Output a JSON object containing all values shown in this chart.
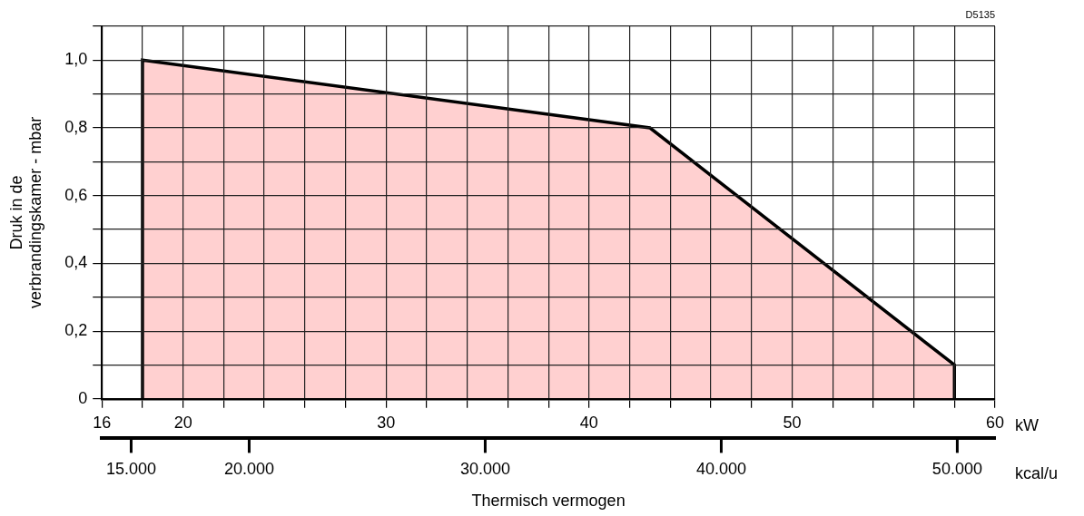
{
  "chart_data": {
    "type": "area",
    "xlabel": "kW",
    "x2label": "kcal/u",
    "ylabel": "Druk in de verbrandingskamer - mbar",
    "annotations": [
      "D5135",
      "Thermisch vermogen"
    ],
    "xlim": [
      16,
      60
    ],
    "xticks": [
      16,
      {
        "value": 18,
        "label": null
      },
      20,
      {
        "value": 22,
        "label": null
      },
      {
        "value": 24,
        "label": null
      },
      {
        "value": 26,
        "label": null
      },
      {
        "value": 28,
        "label": null
      },
      30,
      {
        "value": 32,
        "label": null
      },
      {
        "value": 34,
        "label": null
      },
      {
        "value": 36,
        "label": null
      },
      {
        "value": 38,
        "label": null
      },
      40,
      {
        "value": 42,
        "label": null
      },
      {
        "value": 44,
        "label": null
      },
      {
        "value": 46,
        "label": null
      },
      {
        "value": 48,
        "label": null
      },
      50,
      {
        "value": 52,
        "label": null
      },
      {
        "value": 54,
        "label": null
      },
      {
        "value": 56,
        "label": null
      },
      {
        "value": 58,
        "label": null
      },
      60
    ],
    "x2lim": [
      13760,
      51600
    ],
    "x2ticks": [
      {
        "value": 15000,
        "label": "15.000"
      },
      {
        "value": 20000,
        "label": "20.000"
      },
      {
        "value": 30000,
        "label": "30.000"
      },
      {
        "value": 40000,
        "label": "40.000"
      },
      {
        "value": 50000,
        "label": "50.000"
      }
    ],
    "ylim": [
      0,
      1.1
    ],
    "yticks": [
      0,
      {
        "value": 0.1,
        "label": null
      },
      {
        "value": 0.2,
        "label": "0,2"
      },
      {
        "value": 0.3,
        "label": null
      },
      {
        "value": 0.4,
        "label": "0,4"
      },
      {
        "value": 0.5,
        "label": null
      },
      {
        "value": 0.6,
        "label": "0,6"
      },
      {
        "value": 0.7,
        "label": null
      },
      {
        "value": 0.8,
        "label": "0,8"
      },
      {
        "value": 0.9,
        "label": null
      },
      {
        "value": 1.0,
        "label": "1,0"
      },
      {
        "value": 1.1,
        "label": null
      }
    ],
    "grid": true,
    "series": [
      {
        "x": [
          18,
          18,
          43,
          58,
          58
        ],
        "values": [
          0,
          1,
          0.8,
          0.1,
          0
        ],
        "color": "#ffd0d0"
      }
    ]
  }
}
